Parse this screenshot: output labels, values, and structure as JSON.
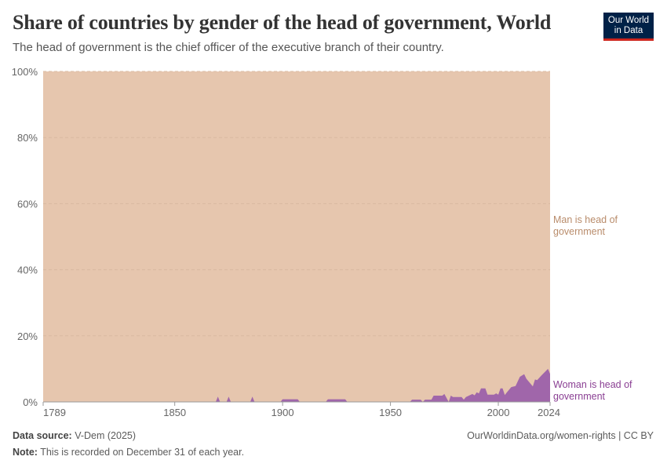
{
  "title": "Share of countries by gender of the head of government, World",
  "subtitle": "The head of government is the chief officer of the executive branch of their country.",
  "logo": {
    "line1": "Our World",
    "line2": "in Data"
  },
  "footer": {
    "source_label": "Data source:",
    "source": "V-Dem (2025)",
    "note_label": "Note:",
    "note": "This is recorded on December 31 of each year.",
    "url": "OurWorldinData.org/women-rights | CC BY"
  },
  "chart_data": {
    "type": "area",
    "stacked": true,
    "xlim": [
      1789,
      2024
    ],
    "ylim": [
      0,
      100
    ],
    "x_ticks": [
      "1789",
      "1850",
      "1900",
      "1950",
      "2000",
      "2024"
    ],
    "y_ticks": [
      "0%",
      "20%",
      "40%",
      "60%",
      "80%",
      "100%"
    ],
    "grid": "horizontal dashed",
    "series": [
      {
        "name": "Woman is head of government",
        "color": "#a066aa",
        "label_color": "#8a3f93",
        "points": [
          [
            1789,
            0
          ],
          [
            1869,
            0
          ],
          [
            1870,
            1.6
          ],
          [
            1871,
            0
          ],
          [
            1874,
            0
          ],
          [
            1875,
            1.6
          ],
          [
            1876,
            0
          ],
          [
            1885,
            0
          ],
          [
            1886,
            1.6
          ],
          [
            1887,
            0
          ],
          [
            1899,
            0
          ],
          [
            1900,
            0.8
          ],
          [
            1907,
            0.8
          ],
          [
            1908,
            0
          ],
          [
            1920,
            0
          ],
          [
            1921,
            0.8
          ],
          [
            1929,
            0.8
          ],
          [
            1930,
            0
          ],
          [
            1959,
            0
          ],
          [
            1960,
            0.7
          ],
          [
            1964,
            0.7
          ],
          [
            1965,
            0
          ],
          [
            1966,
            0.7
          ],
          [
            1969,
            0.7
          ],
          [
            1970,
            1.9
          ],
          [
            1974,
            1.9
          ],
          [
            1975,
            2.4
          ],
          [
            1977,
            0
          ],
          [
            1978,
            1.9
          ],
          [
            1979,
            1.5
          ],
          [
            1983,
            1.5
          ],
          [
            1984,
            0.7
          ],
          [
            1985,
            1.5
          ],
          [
            1988,
            2.4
          ],
          [
            1989,
            2.0
          ],
          [
            1990,
            2.9
          ],
          [
            1991,
            2.6
          ],
          [
            1992,
            4.1
          ],
          [
            1994,
            4.1
          ],
          [
            1995,
            2.2
          ],
          [
            1998,
            2.2
          ],
          [
            1999,
            2.6
          ],
          [
            2000,
            2.2
          ],
          [
            2001,
            4.1
          ],
          [
            2002,
            4.1
          ],
          [
            2003,
            2.1
          ],
          [
            2004,
            2.9
          ],
          [
            2006,
            4.5
          ],
          [
            2008,
            4.8
          ],
          [
            2010,
            7.6
          ],
          [
            2012,
            8.4
          ],
          [
            2013,
            7.0
          ],
          [
            2016,
            4.7
          ],
          [
            2017,
            6.8
          ],
          [
            2018,
            6.6
          ],
          [
            2020,
            8.0
          ],
          [
            2023,
            10.0
          ],
          [
            2024,
            8.5
          ]
        ]
      },
      {
        "name": "Man is head of government",
        "color": "#e6c6ae",
        "label_color": "#b98c6b",
        "rest_of_100": true
      }
    ]
  }
}
